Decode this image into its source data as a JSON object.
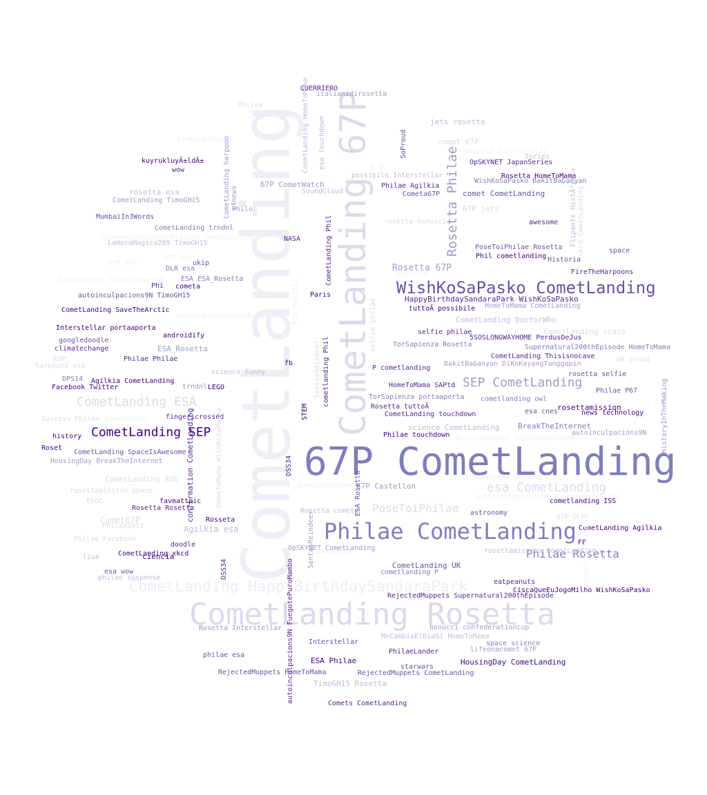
{
  "words": [
    "CometLanding",
    "CometLanding 67P",
    "67P CometLanding",
    "CometLanding Rosetta",
    "Philae CometLanding",
    "WishKoSaPasko CometLanding",
    "CometLanding HappyBirthdaySandaraPark",
    "CometLanding SEP",
    "Rosetta Philae",
    "CometLanding ESA",
    "SEP CometLanding",
    "esa CometLanding",
    "Philae Rosetta",
    "PoseToiPhilae",
    "GUERRIERO",
    "italianidirosetta",
    "Philea",
    "GoHumanity",
    "jets rosetta",
    "comet 67P",
    "KimKardashian",
    "kuyrukluyÄ±ldÄ±",
    "wow",
    "Rosetta Interstellar",
    "Tories",
    "OpSKYNET JapanSeries",
    "comet CometLanding",
    "possibile Interstellar",
    "Philae Agilkia",
    "Rosetta HomeToMama",
    "WishKoSaPasko BakitBaGanyan",
    "rosetta esa",
    "CometLanding TimoGH15",
    "67P CometWatch",
    "SoundCloud",
    "Cometa67P",
    "67P jets",
    "MumbaiIn3Words",
    "CometLanding trndnl",
    "awesome",
    "rosetta bonucci",
    "Supernatural200thEpisode CometLanding",
    "LaHoraMagica289 TimoGH15",
    "NASA",
    "PoseToiPhilae Rosetta",
    "space",
    "Phil cometlanding",
    "Historia",
    "67P Philae",
    "67P 67P",
    "ukip",
    "DLR esa",
    "Rosetta 67P",
    "Ambition",
    "FireTheHarpoons",
    "CometWatch CometLanding",
    "ESA ESA_Rosetta",
    "Phi",
    "cometa",
    "autoinculpacions9N TimoGH15",
    "Paris",
    "HappyBirthdaySandaraPark WishKoSaPasko",
    "tuttoÃ possibile",
    "HomeToMama CometLanding",
    "CometLanding SaveTheArctic",
    "WeCanLandOnACometButWeCant",
    "CometLanding DoctorWho",
    "Interstellar portaaporta",
    "androidify",
    "CometLanding space",
    "googledoodle",
    "climatechange",
    "ESA_Rosetta",
    "5SOSLONGWAYHOME PerdusDeJus",
    "TorSapienza Rosetta",
    "Supernatural200thEpisode HomeToMama",
    "CometLanding Thisisnocave",
    "KSP",
    "Philae Philae",
    "harpoons esa",
    "BakitBaGanyan DiKoKayangTanggapin",
    "UK proud",
    "fb",
    "P cometlanding",
    "rosetta selfie",
    "science funny",
    "DPS14",
    "Agilkia CometLanding",
    "Facebook Twitter",
    "HomeToMama SAPtd",
    "Philae P67",
    "trndnl",
    "LEGO",
    "TorSapienza portaaporta",
    "cometlanding owl",
    "Rosetta tuttoÃ",
    "rosettamission",
    "esa cnes",
    "news technology",
    "Success Philae",
    "Armageddon",
    "fingerscrossed",
    "CometLanding touchdown",
    "BreakTheInternet",
    "science CometLanding",
    "autoinculpacions9N",
    "history",
    "Philae touchdown",
    "RejectedBooks 5SOSLONGWAYHOME",
    "Roset",
    "CometLanding SpaceIsAwesome",
    "HousingDay BreakTheInternet",
    "CometLanding AOS",
    "5SOSLONGWAYHOME OpSKYNET",
    "rosettamission space",
    "67P Castellon",
    "ESOC",
    "favmattpic",
    "Rosetta Rosetta",
    "cometlanding ISS",
    "Comet67P",
    "Rosseta",
    "Rosetta cometa",
    "astronomy",
    "67P DLR",
    "Philae2014",
    "Agilkia esa",
    "CometLanding Agilkia",
    "Philae Facebook",
    "doodle",
    "FF",
    "OpSKYNET CometLanding",
    "Rossetta",
    "live",
    "CometLanding xkcd",
    "ciencia",
    "rosettamission CometLanding",
    "CometLanding UK",
    "esa wow",
    "philae suspense",
    "cometlanding P",
    "eatpeanuts",
    "CiscaQueEuJogoMilho WishKoSaPasko",
    "RejectedMuppets Supernatural200thEpisode",
    "Rosetta Interstellar",
    "bonucci confederationcup",
    "MeCambiaElDiaSi HomeToMama",
    "Interstellar",
    "space science",
    "PhilaeLander",
    "lifeonacomet 67P",
    "philae esa",
    "ESA Philae",
    "HousingDay CometLanding",
    "starwars",
    "RejectedMuppets HomeToMama",
    "RejectedMuppets CometLanding",
    "TimoGH15 Rosetta",
    "Comets CometLanding",
    "CometLanding HomeToMama",
    "c4news",
    "esa touchdown",
    "SoProud",
    "CometLanding harpoon",
    "CometLanding Phil",
    "esa space",
    "osiris philae",
    "Flipante HistÃ³rico",
    "xkcd CometLanding",
    "HistoryInTheMaking",
    "confirmation CometLanding",
    "HomeToMama WishKoSaPasko",
    "cometlanding Phil",
    "STEM",
    "DSS34",
    "ESA Rosetta",
    "SantasReindeer",
    "autoinculpacions9N FuegotePuroMambo",
    "selfie philae",
    "proud CometLanding",
    "Philo",
    "Ø Ø",
    "cometlanding Ph"
  ]
}
